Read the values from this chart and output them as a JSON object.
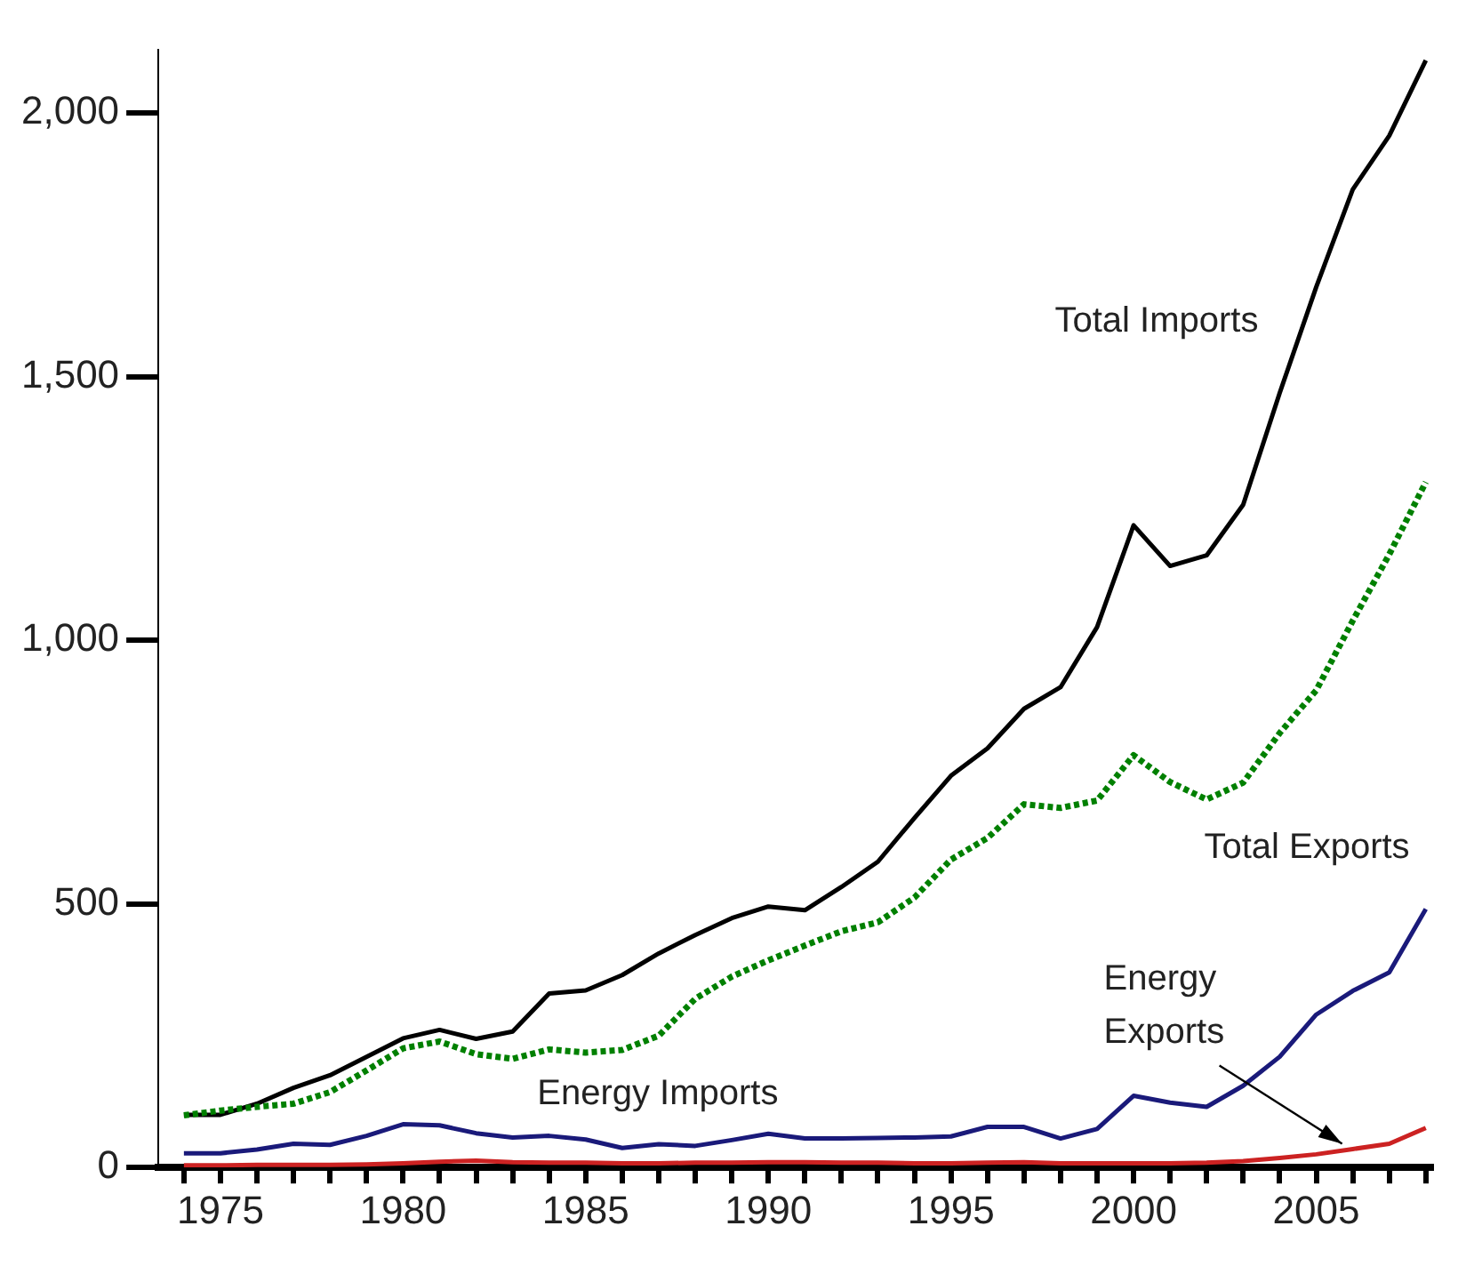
{
  "chart_data": {
    "type": "line",
    "x": [
      1974,
      1975,
      1976,
      1977,
      1978,
      1979,
      1980,
      1981,
      1982,
      1983,
      1984,
      1985,
      1986,
      1987,
      1988,
      1989,
      1990,
      1991,
      1992,
      1993,
      1994,
      1995,
      1996,
      1997,
      1998,
      1999,
      2000,
      2001,
      2002,
      2003,
      2004,
      2005,
      2006,
      2007,
      2008
    ],
    "series": [
      {
        "name": "Total Imports",
        "color": "#000000",
        "line_style": "solid",
        "values": [
          100,
          100,
          121,
          151,
          175,
          210,
          245,
          261,
          244,
          258,
          330,
          336,
          365,
          406,
          441,
          473,
          495,
          488,
          532,
          580,
          663,
          743,
          795,
          870,
          911,
          1025,
          1218,
          1141,
          1161,
          1257,
          1469,
          1670,
          1855,
          1957,
          2100
        ]
      },
      {
        "name": "Total Exports",
        "color": "#008000",
        "line_style": "dotted",
        "values": [
          99,
          108,
          115,
          121,
          143,
          184,
          226,
          239,
          215,
          206,
          224,
          218,
          223,
          250,
          320,
          362,
          393,
          421,
          448,
          465,
          512,
          584,
          625,
          689,
          682,
          696,
          782,
          731,
          698,
          730,
          824,
          905,
          1037,
          1163,
          1300
        ]
      },
      {
        "name": "Energy Imports",
        "color": "#1a1a7a",
        "line_style": "solid",
        "values": [
          27,
          27,
          34,
          45,
          43,
          60,
          82,
          80,
          65,
          57,
          60,
          53,
          37,
          44,
          41,
          52,
          64,
          55,
          55,
          56,
          57,
          59,
          77,
          77,
          55,
          73,
          136,
          123,
          115,
          155,
          210,
          290,
          335,
          370,
          490
        ]
      },
      {
        "name": "Energy Exports",
        "color": "#cc2222",
        "line_style": "solid",
        "values": [
          4,
          4,
          5,
          5,
          5,
          6,
          8,
          11,
          13,
          10,
          9,
          9,
          8,
          8,
          9,
          9,
          10,
          10,
          9,
          9,
          8,
          8,
          9,
          10,
          8,
          8,
          8,
          8,
          9,
          12,
          18,
          25,
          35,
          45,
          75
        ]
      }
    ],
    "xlim": [
      1973.3,
      2008.2
    ],
    "xticks": [
      {
        "value": 1974,
        "label": null
      },
      1975,
      {
        "value": 1976,
        "label": null
      },
      {
        "value": 1977,
        "label": null
      },
      {
        "value": 1978,
        "label": null
      },
      {
        "value": 1979,
        "label": null
      },
      1980,
      {
        "value": 1981,
        "label": null
      },
      {
        "value": 1982,
        "label": null
      },
      {
        "value": 1983,
        "label": null
      },
      {
        "value": 1984,
        "label": null
      },
      1985,
      {
        "value": 1986,
        "label": null
      },
      {
        "value": 1987,
        "label": null
      },
      {
        "value": 1988,
        "label": null
      },
      {
        "value": 1989,
        "label": null
      },
      1990,
      {
        "value": 1991,
        "label": null
      },
      {
        "value": 1992,
        "label": null
      },
      {
        "value": 1993,
        "label": null
      },
      {
        "value": 1994,
        "label": null
      },
      1995,
      {
        "value": 1996,
        "label": null
      },
      {
        "value": 1997,
        "label": null
      },
      {
        "value": 1998,
        "label": null
      },
      {
        "value": 1999,
        "label": null
      },
      2000,
      {
        "value": 2001,
        "label": null
      },
      {
        "value": 2002,
        "label": null
      },
      {
        "value": 2003,
        "label": null
      },
      {
        "value": 2004,
        "label": null
      },
      2005,
      {
        "value": 2006,
        "label": null
      },
      {
        "value": 2007,
        "label": null
      },
      {
        "value": 2008,
        "label": null
      }
    ],
    "ylim": [
      0,
      2120
    ],
    "yticks": [
      0,
      500,
      {
        "value": 1000,
        "label": "1,000"
      },
      {
        "value": 1500,
        "label": "1,500"
      },
      {
        "value": 2000,
        "label": "2,000"
      }
    ],
    "grid": false,
    "legend": false,
    "marker": "none"
  }
}
